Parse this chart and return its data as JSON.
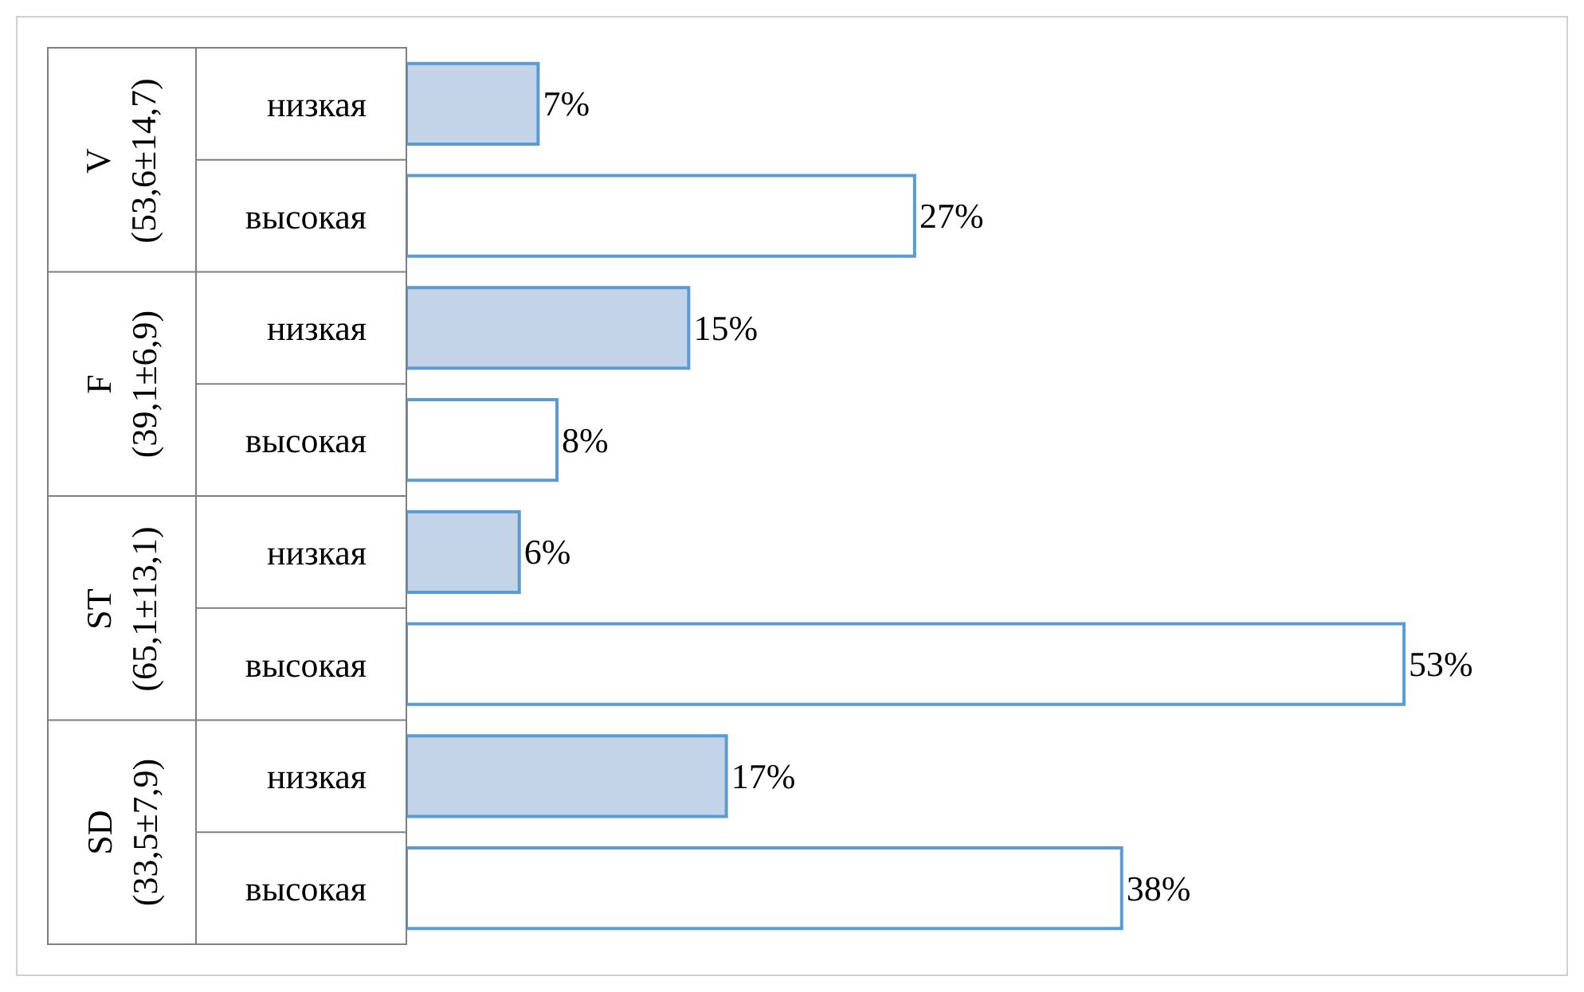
{
  "chart_data": {
    "type": "bar",
    "orientation": "horizontal",
    "categories": [
      "низкая",
      "высокая",
      "низкая",
      "высокая",
      "низкая",
      "высокая",
      "низкая",
      "высокая"
    ],
    "values": [
      7,
      27,
      15,
      8,
      6,
      53,
      17,
      38
    ],
    "value_labels": [
      "7%",
      "27%",
      "15%",
      "8%",
      "6%",
      "53%",
      "17%",
      "38%"
    ],
    "color": "#5b9bd5",
    "colors": [
      "#c3d3e8",
      "#ffffff",
      "#c3d3e8",
      "#ffffff",
      "#c3d3e8",
      "#ffffff",
      "#c3d3e8",
      "#ffffff"
    ],
    "annotations": [
      "V\n(53,6±14,7)",
      "F\n(39,1±6,9)",
      "ST\n(65,1±13,1)",
      "SD\n(33,5±7,9)"
    ],
    "grid": false,
    "legend": false
  }
}
